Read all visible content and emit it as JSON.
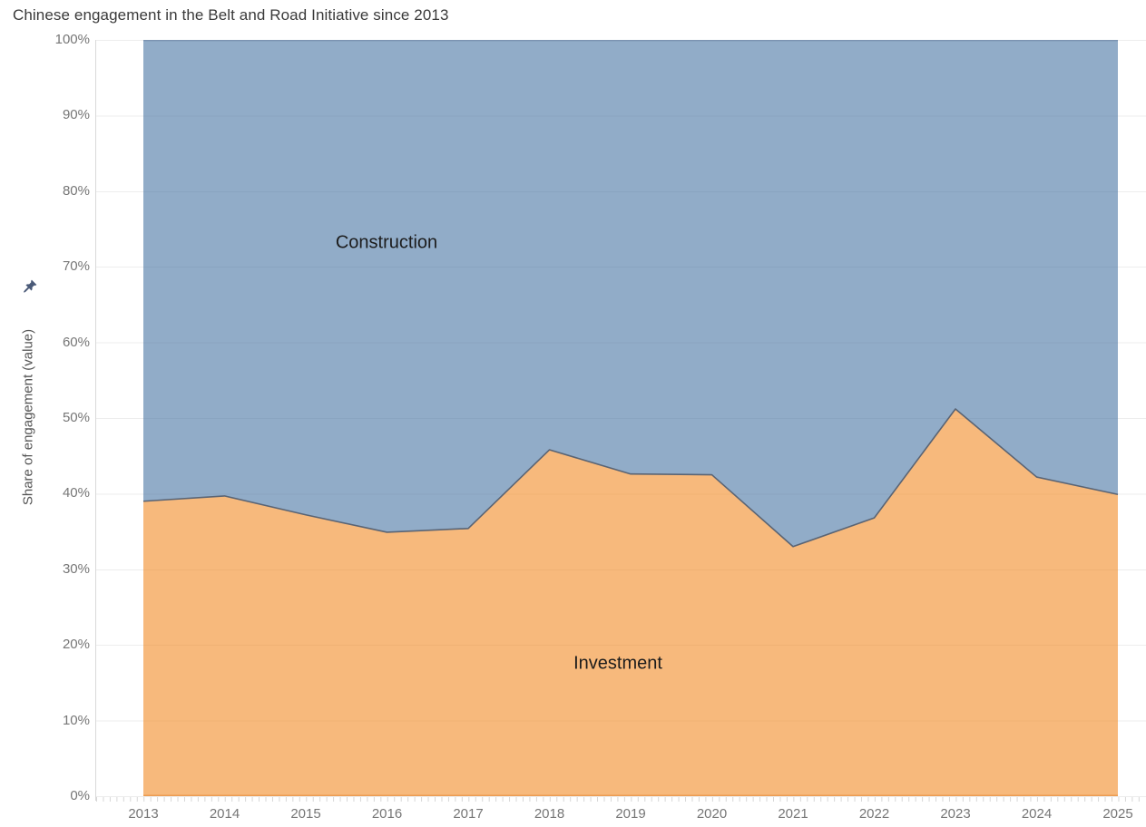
{
  "page": {
    "title": "Chinese engagement in the Belt and Road Initiative since 2013"
  },
  "y_axis": {
    "title": "Share of engagement (value)",
    "tick_labels": [
      "0%",
      "10%",
      "20%",
      "30%",
      "40%",
      "50%",
      "60%",
      "70%",
      "80%",
      "90%",
      "100%"
    ],
    "tick_values": [
      0,
      10,
      20,
      30,
      40,
      50,
      60,
      70,
      80,
      90,
      100
    ]
  },
  "x_axis": {
    "tick_labels": [
      "2013",
      "2014",
      "2015",
      "2016",
      "2017",
      "2018",
      "2019",
      "2020",
      "2021",
      "2022",
      "2023",
      "2024",
      "2025"
    ]
  },
  "area_labels": {
    "construction": "Construction",
    "investment": "Investment"
  },
  "colors": {
    "investment_fill": "#F28E2B",
    "construction_fill": "#4E79A7",
    "fill_opacity": 0.62,
    "boundary_stroke": "#5A6474",
    "top_edge_stroke": "#7B93B1",
    "baseline_stroke": "#EC9C51",
    "gridline": "#EDEDED",
    "axis_line": "#D9D9D9",
    "tick_mark": "#D7D7D7",
    "axis_text": "#767676",
    "title_text": "#3A3A3A",
    "pin": "#4A5A78"
  },
  "chart_data": {
    "type": "area",
    "stacked": true,
    "percent": true,
    "title": "Chinese engagement in the Belt and Road Initiative since 2013",
    "xlabel": "",
    "ylabel": "Share of engagement (value)",
    "ylim": [
      0,
      100
    ],
    "grid": true,
    "legend_position": "in-plot-labels",
    "x": [
      2013,
      2014,
      2015,
      2016,
      2017,
      2018,
      2019,
      2020,
      2021,
      2022,
      2023,
      2024,
      2025
    ],
    "series": [
      {
        "name": "Investment",
        "values": [
          39.0,
          39.7,
          37.2,
          34.9,
          35.4,
          45.8,
          42.6,
          42.5,
          33.0,
          36.8,
          51.2,
          42.2,
          39.9
        ]
      },
      {
        "name": "Construction",
        "values": [
          61.0,
          60.3,
          62.8,
          65.1,
          64.6,
          54.2,
          57.4,
          57.5,
          67.0,
          63.2,
          48.8,
          57.8,
          60.1
        ]
      }
    ]
  }
}
